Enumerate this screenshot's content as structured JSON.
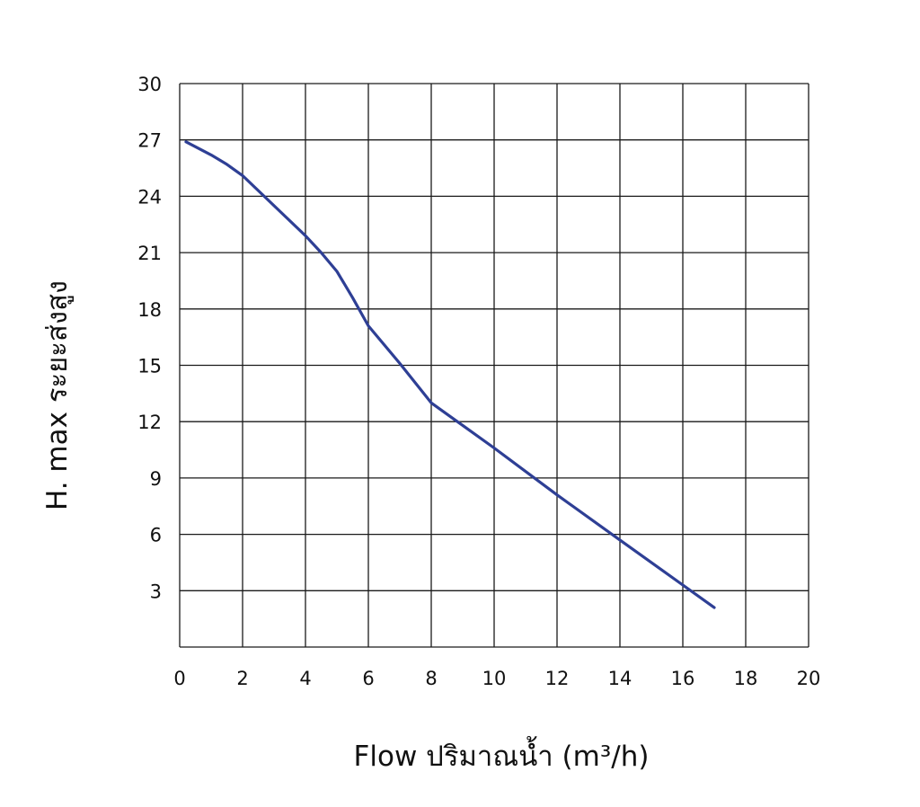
{
  "chart_data": {
    "type": "line",
    "xlabel": "Flow  ปริมาณน้ำ (m³/h)",
    "ylabel": "H. max  ระยะส่งสูง",
    "xlim": [
      0,
      20
    ],
    "ylim": [
      0,
      30
    ],
    "x_ticks": [
      "0",
      "2",
      "4",
      "6",
      "8",
      "10",
      "12",
      "14",
      "16",
      "18",
      "20"
    ],
    "y_ticks": [
      "3",
      "6",
      "9",
      "12",
      "15",
      "18",
      "21",
      "24",
      "27",
      "30"
    ],
    "grid": true,
    "series": [
      {
        "color": "#2e3f95",
        "points": [
          [
            0.2,
            26.9
          ],
          [
            1.0,
            26.2
          ],
          [
            1.5,
            25.7
          ],
          [
            2.0,
            25.1
          ],
          [
            3.0,
            23.5
          ],
          [
            4.0,
            21.9
          ],
          [
            4.5,
            21.0
          ],
          [
            5.0,
            20.0
          ],
          [
            5.5,
            18.6
          ],
          [
            6.0,
            17.1
          ],
          [
            7.0,
            15.1
          ],
          [
            8.0,
            13.0
          ],
          [
            10.0,
            10.6
          ],
          [
            12.0,
            8.1
          ],
          [
            14.0,
            5.7
          ],
          [
            16.0,
            3.3
          ],
          [
            17.0,
            2.1
          ]
        ]
      }
    ]
  }
}
